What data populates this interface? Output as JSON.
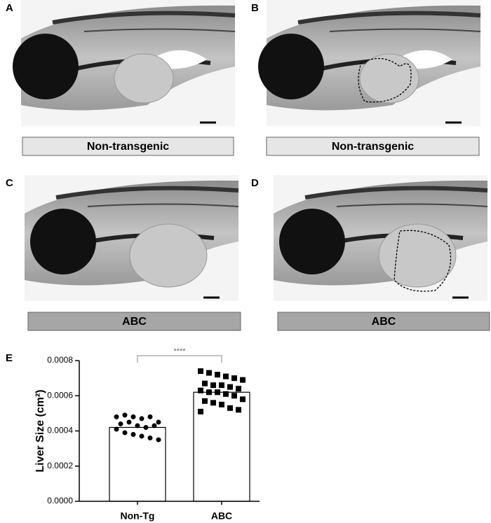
{
  "panels": [
    {
      "label": "A",
      "caption": "Non-transgenic"
    },
    {
      "label": "B",
      "caption": "Non-transgenic"
    },
    {
      "label": "C",
      "caption": "ABC"
    },
    {
      "label": "D",
      "caption": "ABC"
    }
  ],
  "chart_data": {
    "type": "bar",
    "panel_label": "E",
    "y_label": "Liver Size (cm²)",
    "categories": [
      "Non-Tg",
      "ABC"
    ],
    "values": [
      0.00042,
      0.00062
    ],
    "color": "#ffffff",
    "points": [
      [
        0.00048,
        0.00049,
        0.00048,
        0.00047,
        0.00048,
        0.00045,
        0.00044,
        0.00045,
        0.00043,
        0.00042,
        0.00043,
        0.00041,
        0.00039,
        0.00038,
        0.00037,
        0.00036,
        0.00035
      ],
      [
        0.00074,
        0.00073,
        0.00072,
        0.00071,
        0.0007,
        0.00069,
        0.00067,
        0.00066,
        0.00066,
        0.00065,
        0.00064,
        0.00063,
        0.00062,
        0.00062,
        0.00061,
        0.0006,
        0.00058,
        0.00057,
        0.00056,
        0.00055,
        0.00053,
        0.00052,
        0.00051
      ]
    ],
    "markers": [
      "circle",
      "square"
    ],
    "significance": "****",
    "ylim": [
      0,
      0.0008
    ],
    "yticks": [
      {
        "value": 0,
        "label": "0.0000"
      },
      0.0002,
      0.0004,
      0.0006,
      0.0008
    ]
  }
}
